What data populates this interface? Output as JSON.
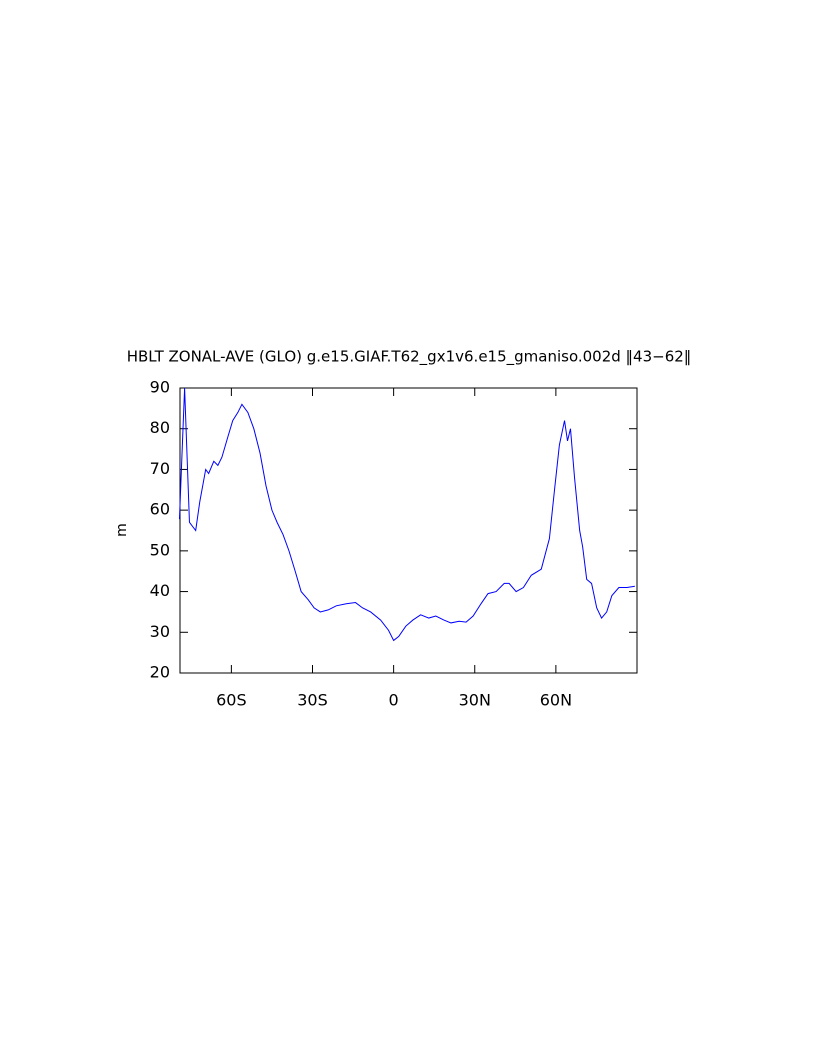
{
  "chart_data": {
    "type": "line",
    "title": "HBLT ZONAL-AVE (GLO) g.e15.GIAF.T62_gx1v6.e15_gmaniso.002d ‖43−62‖",
    "y_label": "m",
    "x": [
      -79.2,
      -77.3,
      -75.5,
      -73.2,
      -71.7,
      -69.5,
      -68.4,
      -66.5,
      -65,
      -63.5,
      -61.3,
      -59.5,
      -57.6,
      -56.1,
      -53.9,
      -51.7,
      -49.4,
      -47.2,
      -45,
      -43.1,
      -40.9,
      -38.7,
      -36.4,
      -34.2,
      -31.6,
      -29.4,
      -27.1,
      -24.2,
      -21.2,
      -17.5,
      -14.1,
      -11.5,
      -8.5,
      -4.8,
      -1.9,
      0,
      1.9,
      4.5,
      7.1,
      10,
      13,
      15.6,
      18.6,
      21.2,
      24.2,
      26.8,
      29.4,
      32.3,
      34.9,
      37.9,
      40.9,
      42.7,
      45.3,
      48,
      50.9,
      54.6,
      57.6,
      59.5,
      61.3,
      63.2,
      64.3,
      65.4,
      66.9,
      68.8,
      69.9,
      71.4,
      73.2,
      75.1,
      76.9,
      78.8,
      80.7,
      83.3,
      86.3,
      89.2
    ],
    "series": [
      {
        "name": "HBLT",
        "color": "#0000ff",
        "values": [
          57.8,
          90,
          57,
          55,
          62,
          70,
          69,
          72,
          71,
          73,
          78,
          82,
          84,
          86,
          84,
          80,
          74,
          66,
          60,
          57,
          54,
          50,
          45,
          40,
          38,
          36,
          35,
          35.5,
          36.5,
          37,
          37.3,
          36,
          35,
          33,
          30.5,
          28,
          29,
          31.5,
          33,
          34.3,
          33.5,
          34,
          33,
          32.3,
          32.7,
          32.5,
          34,
          37,
          39.5,
          40,
          42,
          42,
          40,
          41,
          44,
          45.5,
          53,
          65,
          76,
          82,
          77,
          80,
          68,
          55,
          51,
          43,
          42,
          36,
          33.5,
          35,
          39,
          41,
          41,
          41.3
        ]
      }
    ],
    "xlim": [
      -79,
      90
    ],
    "ylim": [
      20,
      90
    ],
    "xticks": [
      {
        "value": -60,
        "label": "60S"
      },
      {
        "value": -30,
        "label": "30S"
      },
      0,
      {
        "value": 30,
        "label": "30N"
      },
      {
        "value": 60,
        "label": "60N"
      }
    ],
    "yticks": [
      20,
      30,
      40,
      50,
      60,
      70,
      80,
      90
    ]
  }
}
